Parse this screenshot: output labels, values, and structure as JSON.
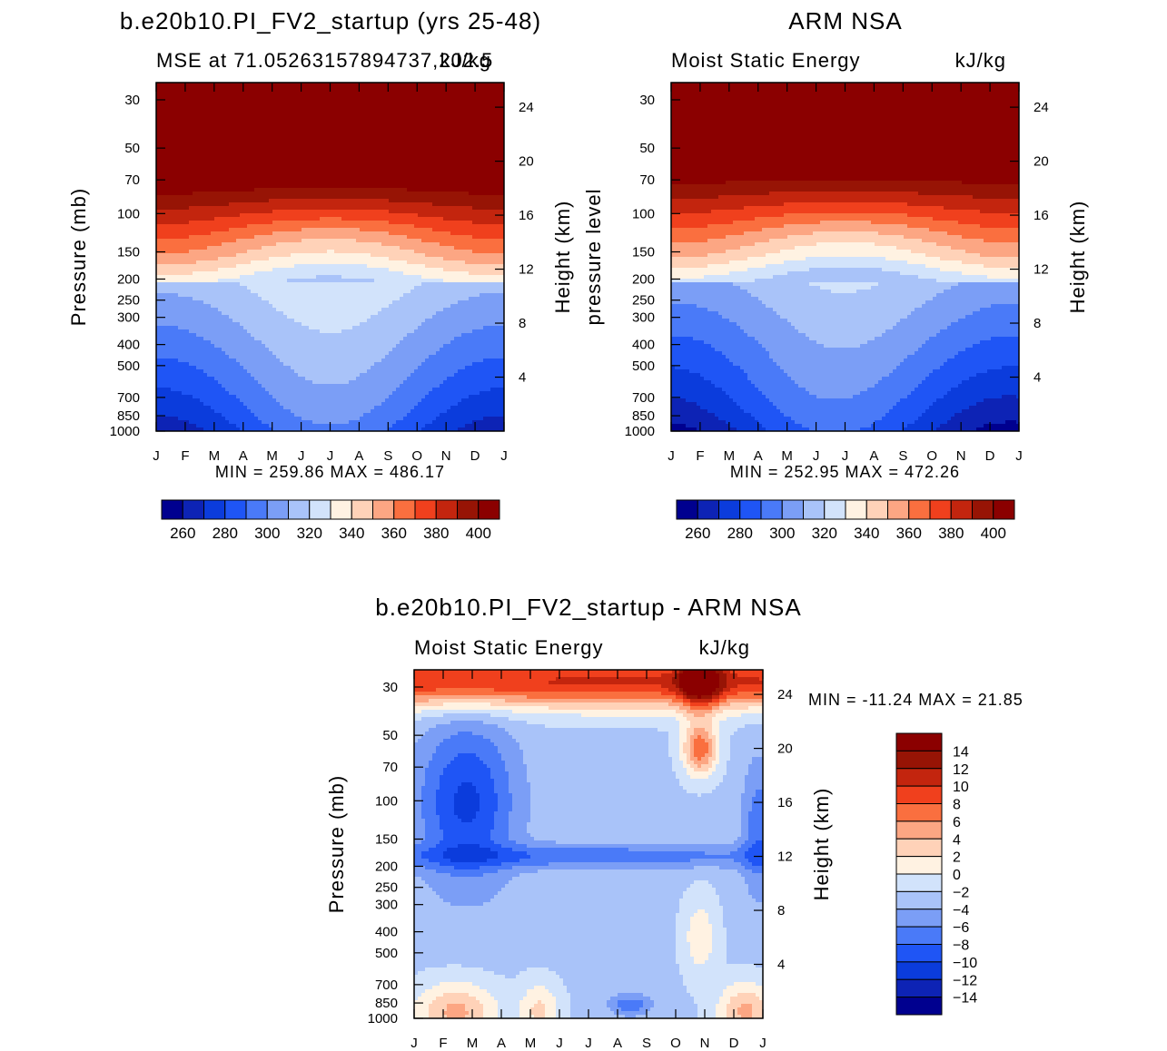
{
  "months": [
    "J",
    "F",
    "M",
    "A",
    "M",
    "J",
    "J",
    "A",
    "S",
    "O",
    "N",
    "D",
    "J"
  ],
  "pressure_ticks": [
    30,
    50,
    70,
    100,
    150,
    200,
    250,
    300,
    400,
    500,
    700,
    850,
    1000
  ],
  "height_ticks_km": [
    4,
    8,
    12,
    16,
    20,
    24
  ],
  "chart_data": [
    {
      "type": "heatmap",
      "title": "b.e20b10.PI_FV2_startup (yrs 25-48)",
      "subtitle_left": "MSE at 71.05263157894737,202.5",
      "subtitle_right": "kJ/kg",
      "ylabel": "Pressure (mb)",
      "ylabel_right": "Height (km)",
      "xlabel_categories": [
        "J",
        "F",
        "M",
        "A",
        "M",
        "J",
        "J",
        "A",
        "S",
        "O",
        "N",
        "D",
        "J"
      ],
      "ylim_mb": [
        1000,
        25
      ],
      "min_label": "MIN =  259.86  MAX =  486.17",
      "min": 259.86,
      "max": 486.17,
      "levels": [
        260,
        270,
        280,
        290,
        300,
        310,
        320,
        330,
        340,
        350,
        360,
        370,
        380,
        390,
        400
      ],
      "colorbar_labels": [
        "260",
        "280",
        "300",
        "320",
        "340",
        "360",
        "380",
        "400"
      ],
      "colors": [
        "#00008f",
        "#0d23b5",
        "#0b3cdc",
        "#1f55f5",
        "#4a7af8",
        "#7b9ef6",
        "#a9c3f9",
        "#d2e3fb",
        "#fff2e2",
        "#ffd2b8",
        "#fca683",
        "#fa6f3f",
        "#f0401d",
        "#c3250e",
        "#971405",
        "#8b0000"
      ]
    },
    {
      "type": "heatmap",
      "title": "ARM NSA",
      "subtitle_left": "Moist Static Energy",
      "subtitle_right": "kJ/kg",
      "ylabel": "pressure level",
      "ylabel_right": "Height (km)",
      "xlabel_categories": [
        "J",
        "F",
        "M",
        "A",
        "M",
        "J",
        "J",
        "A",
        "S",
        "O",
        "N",
        "D",
        "J"
      ],
      "ylim_mb": [
        1000,
        25
      ],
      "min_label": "MIN =  252.95  MAX =  472.26",
      "min": 252.95,
      "max": 472.26,
      "levels": [
        260,
        270,
        280,
        290,
        300,
        310,
        320,
        330,
        340,
        350,
        360,
        370,
        380,
        390,
        400
      ],
      "colorbar_labels": [
        "260",
        "280",
        "300",
        "320",
        "340",
        "360",
        "380",
        "400"
      ],
      "colors": [
        "#00008f",
        "#0d23b5",
        "#0b3cdc",
        "#1f55f5",
        "#4a7af8",
        "#7b9ef6",
        "#a9c3f9",
        "#d2e3fb",
        "#fff2e2",
        "#ffd2b8",
        "#fca683",
        "#fa6f3f",
        "#f0401d",
        "#c3250e",
        "#971405",
        "#8b0000"
      ]
    },
    {
      "type": "heatmap",
      "title": "b.e20b10.PI_FV2_startup - ARM NSA",
      "subtitle_left": "Moist Static Energy",
      "subtitle_right": "kJ/kg",
      "ylabel": "Pressure (mb)",
      "ylabel_right": "Height (km)",
      "xlabel_categories": [
        "J",
        "F",
        "M",
        "A",
        "M",
        "J",
        "J",
        "A",
        "S",
        "O",
        "N",
        "D",
        "J"
      ],
      "ylim_mb": [
        1000,
        25
      ],
      "min_label": "MIN = -11.24  MAX =   21.85",
      "min": -11.24,
      "max": 21.85,
      "levels": [
        -14,
        -12,
        -10,
        -8,
        -6,
        -4,
        -2,
        0,
        2,
        4,
        6,
        8,
        10,
        12,
        14
      ],
      "colorbar_labels": [
        "14",
        "12",
        "10",
        "8",
        "6",
        "4",
        "2",
        "0",
        "−2",
        "−4",
        "−6",
        "−8",
        "−10",
        "−12",
        "−14"
      ],
      "colors": [
        "#00008f",
        "#0d23b5",
        "#0b3cdc",
        "#1f55f5",
        "#4a7af8",
        "#7b9ef6",
        "#a9c3f9",
        "#d2e3fb",
        "#fff2e2",
        "#ffd2b8",
        "#fca683",
        "#fa6f3f",
        "#f0401d",
        "#c3250e",
        "#971405",
        "#8b0000"
      ]
    }
  ]
}
